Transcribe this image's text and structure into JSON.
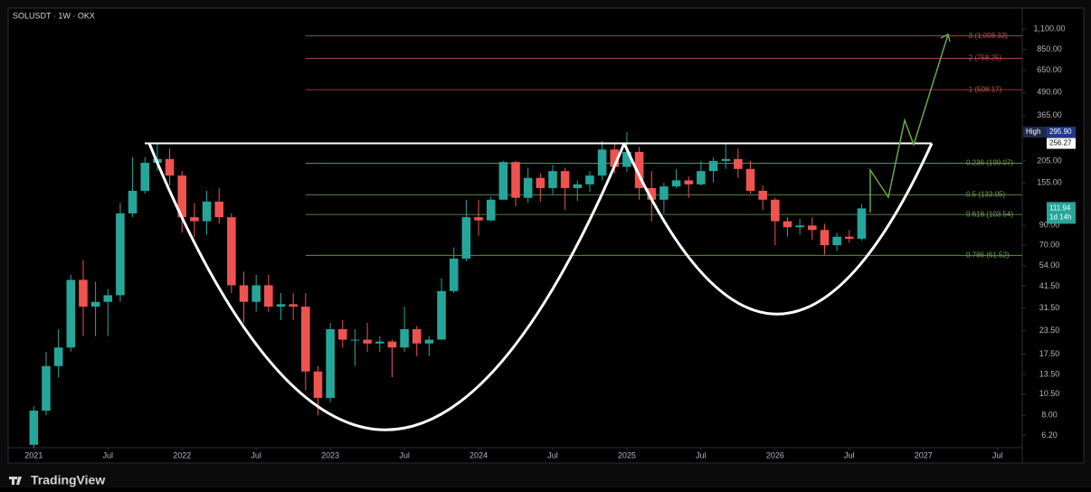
{
  "chart_data": {
    "type": "candlestick",
    "title": "SOLUSDT · 1W · OKX",
    "brand": "TradingView",
    "log_scale": true,
    "up_color": "#26a69a",
    "down_color": "#ef5350",
    "x": [
      "2021-01",
      "2021-02",
      "2021-03",
      "2021-04",
      "2021-05",
      "2021-06",
      "2021-07",
      "2021-08",
      "2021-09",
      "2021-10",
      "2021-11",
      "2021-12",
      "2022-01",
      "2022-02",
      "2022-03",
      "2022-04",
      "2022-05",
      "2022-06",
      "2022-07",
      "2022-08",
      "2022-09",
      "2022-10",
      "2022-11",
      "2022-12",
      "2023-01",
      "2023-02",
      "2023-03",
      "2023-04",
      "2023-05",
      "2023-06",
      "2023-07",
      "2023-08",
      "2023-09",
      "2023-10",
      "2023-11",
      "2023-12",
      "2024-01",
      "2024-02",
      "2024-03",
      "2024-04",
      "2024-05",
      "2024-06",
      "2024-07",
      "2024-08",
      "2024-09",
      "2024-10",
      "2024-11",
      "2024-12",
      "2025-01",
      "2025-02",
      "2025-03",
      "2025-04",
      "2025-05",
      "2025-06",
      "2025-07",
      "2025-08",
      "2025-09",
      "2025-10",
      "2025-11",
      "2025-12",
      "2026-01",
      "2026-02",
      "2026-03",
      "2026-04",
      "2026-05",
      "2026-06",
      "2026-07",
      "2026-08"
    ],
    "open": [
      5.5,
      8.5,
      15,
      19,
      45,
      32,
      34,
      37,
      105,
      140,
      200,
      210,
      170,
      100,
      95,
      122,
      100,
      42,
      34,
      42,
      32,
      33,
      32,
      14,
      10,
      24,
      21,
      21,
      20,
      20.5,
      19,
      24,
      20,
      21,
      39,
      59,
      100,
      96,
      125,
      202,
      128,
      165,
      145,
      180,
      145,
      152,
      170,
      237,
      190,
      230,
      145,
      125,
      148,
      160,
      152,
      180,
      205,
      210,
      185,
      140,
      125,
      95,
      88,
      90,
      85,
      70,
      78,
      76
    ],
    "high": [
      9,
      18,
      24,
      48,
      58,
      44,
      40,
      120,
      215,
      215,
      260,
      240,
      180,
      120,
      140,
      145,
      105,
      50,
      48,
      48,
      38,
      38,
      38,
      15,
      26,
      27,
      24,
      26,
      22,
      21,
      32,
      25,
      22,
      46,
      68,
      125,
      125,
      130,
      205,
      205,
      188,
      175,
      195,
      188,
      160,
      180,
      264,
      260,
      295.9,
      245,
      180,
      155,
      185,
      168,
      205,
      215,
      255,
      240,
      205,
      150,
      128,
      100,
      98,
      100,
      92,
      82,
      85,
      118
    ],
    "low": [
      5.3,
      8,
      13,
      18,
      22,
      22,
      22,
      34,
      100,
      135,
      180,
      150,
      82,
      78,
      80,
      92,
      38,
      26,
      30,
      30,
      27,
      27,
      11,
      8,
      9.5,
      19,
      15,
      18,
      18,
      13,
      18,
      17,
      17,
      21,
      38,
      57,
      79,
      95,
      125,
      115,
      120,
      122,
      134,
      110,
      123,
      138,
      160,
      175,
      178,
      125,
      95,
      105,
      145,
      128,
      150,
      155,
      185,
      165,
      135,
      110,
      70,
      78,
      80,
      75,
      62,
      65,
      72,
      74
    ],
    "close": [
      8.5,
      15,
      19,
      45,
      32,
      34,
      37,
      105,
      140,
      200,
      210,
      170,
      100,
      95,
      122,
      100,
      42,
      34,
      42,
      32,
      33,
      32,
      14,
      10,
      24,
      21,
      21,
      20,
      20.5,
      19,
      24,
      20,
      21,
      39,
      59,
      100,
      96,
      125,
      202,
      128,
      165,
      145,
      180,
      145,
      152,
      170,
      237,
      190,
      230,
      145,
      125,
      148,
      160,
      152,
      180,
      205,
      210,
      185,
      140,
      125,
      95,
      88,
      90,
      85,
      70,
      78,
      76,
      111.94
    ],
    "xlim": [
      "2020-11",
      "2027-09"
    ],
    "xticks": [
      {
        "value": "2021-01",
        "label": "2021"
      },
      {
        "value": "2021-07",
        "label": "Jul"
      },
      {
        "value": "2022-01",
        "label": "2022"
      },
      {
        "value": "2022-07",
        "label": "Jul"
      },
      {
        "value": "2023-01",
        "label": "2023"
      },
      {
        "value": "2023-07",
        "label": "Jul"
      },
      {
        "value": "2024-01",
        "label": "2024"
      },
      {
        "value": "2024-07",
        "label": "Jul"
      },
      {
        "value": "2025-01",
        "label": "2025"
      },
      {
        "value": "2025-07",
        "label": "Jul"
      },
      {
        "value": "2026-01",
        "label": "2026"
      },
      {
        "value": "2026-07",
        "label": "Jul"
      },
      {
        "value": "2027-01",
        "label": "2027"
      },
      {
        "value": "2027-07",
        "label": "Jul"
      }
    ],
    "ylim": [
      5.3,
      1420
    ],
    "yticks": [
      {
        "value": 1100,
        "label": "1,100.00"
      },
      {
        "value": 850,
        "label": "850.00"
      },
      {
        "value": 650,
        "label": "650.00"
      },
      {
        "value": 490,
        "label": "490.00"
      },
      {
        "value": 365,
        "label": "365.00"
      },
      {
        "value": 205,
        "label": "205.00"
      },
      {
        "value": 155,
        "label": "155.00"
      },
      {
        "value": 90,
        "label": "90.00"
      },
      {
        "value": 70,
        "label": "70.00"
      },
      {
        "value": 54,
        "label": "54.00"
      },
      {
        "value": 41.5,
        "label": "41.50"
      },
      {
        "value": 31.5,
        "label": "31.50"
      },
      {
        "value": 23.5,
        "label": "23.50"
      },
      {
        "value": 17.5,
        "label": "17.50"
      },
      {
        "value": 13.5,
        "label": "13.50"
      },
      {
        "value": 10.5,
        "label": "10.50"
      },
      {
        "value": 8,
        "label": "8.00"
      },
      {
        "value": 6.2,
        "label": "6.20"
      }
    ],
    "fib_levels": [
      {
        "value": 1008.33,
        "label": "-3 (1,008.33)",
        "color": "#c0504d"
      },
      {
        "value": 758.25,
        "label": "-2 (758.25)",
        "color": "#c0504d"
      },
      {
        "value": 508.17,
        "label": "-1 (508.17)",
        "color": "#c0504d"
      },
      {
        "value": 199.07,
        "label": "0.236 (199.07)",
        "color": "#6aa84f"
      },
      {
        "value": 133.05,
        "label": "0.5 (133.05)",
        "color": "#6aa84f"
      },
      {
        "value": 103.54,
        "label": "0.618 (103.54)",
        "color": "#6aa84f"
      },
      {
        "value": 61.52,
        "label": "0.786 (61.52)",
        "color": "#6aa84f"
      }
    ],
    "high_badge": {
      "name": "High",
      "value": 295.9,
      "label": "295.90"
    },
    "neckline": 256.27,
    "current_price": {
      "value": 111.94,
      "countdown": "1d 14h"
    }
  }
}
